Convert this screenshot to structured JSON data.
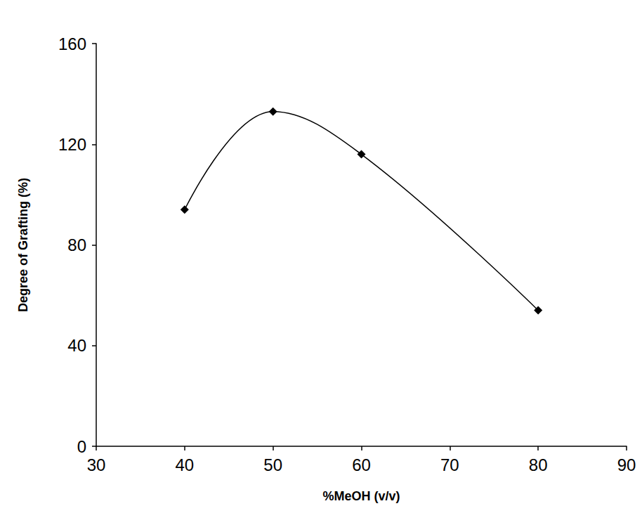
{
  "chart_data": {
    "type": "line",
    "x_label": "%MeOH (v/v)",
    "y_label": "Degree of Grafting (%)",
    "x": [
      40,
      50,
      60,
      80
    ],
    "values": [
      94,
      133,
      116,
      54
    ],
    "color": "#000000",
    "marker": "diamond",
    "line_style": "solid",
    "xlim": [
      30,
      90
    ],
    "xticks": [
      30,
      40,
      50,
      60,
      70,
      80,
      90
    ],
    "ylim": [
      0,
      160
    ],
    "yticks": [
      0,
      40,
      80,
      120,
      160
    ],
    "grid": false
  }
}
